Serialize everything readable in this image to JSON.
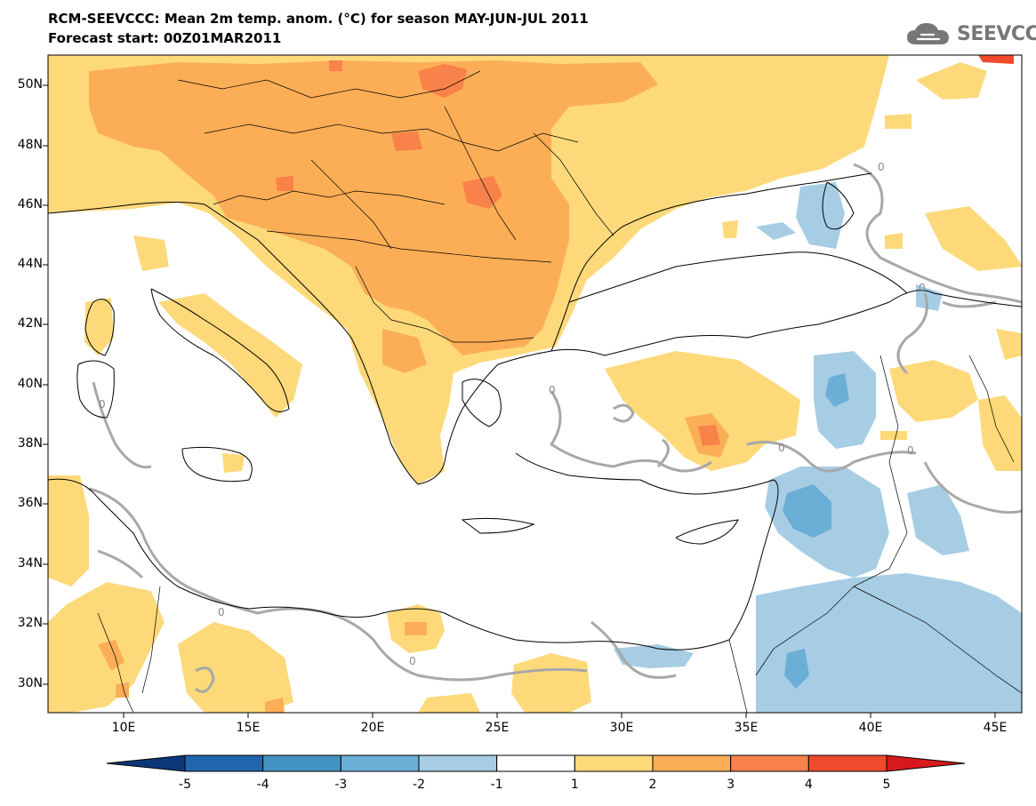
{
  "header": {
    "title_line1": "RCM-SEEVCCC: Mean 2m temp. anom. (°C) for season MAY-JUN-JUL 2011",
    "title_line2": "Forecast start: 00Z01MAR2011",
    "logo_text": "SEEVCCC"
  },
  "map": {
    "lat_labels": [
      "50N",
      "48N",
      "46N",
      "44N",
      "42N",
      "40N",
      "38N",
      "36N",
      "34N",
      "32N",
      "30N"
    ],
    "lon_labels": [
      "10E",
      "15E",
      "20E",
      "25E",
      "30E",
      "35E",
      "40E",
      "45E"
    ],
    "contour_label": "0",
    "ocean_color": "#ffffff",
    "coast_color": "#000000",
    "zero_contour_color": "#a8a8a8"
  },
  "colorbar": {
    "labels": [
      "-5",
      "-4",
      "-3",
      "-2",
      "-1",
      "1",
      "2",
      "3",
      "4",
      "5"
    ],
    "colors": [
      "#0a3778",
      "#2166ac",
      "#4393c3",
      "#6baed6",
      "#a6cde3",
      "#ffffff",
      "#fdd97a",
      "#fcae56",
      "#f9814a",
      "#ef4a2c",
      "#d7191c"
    ]
  }
}
